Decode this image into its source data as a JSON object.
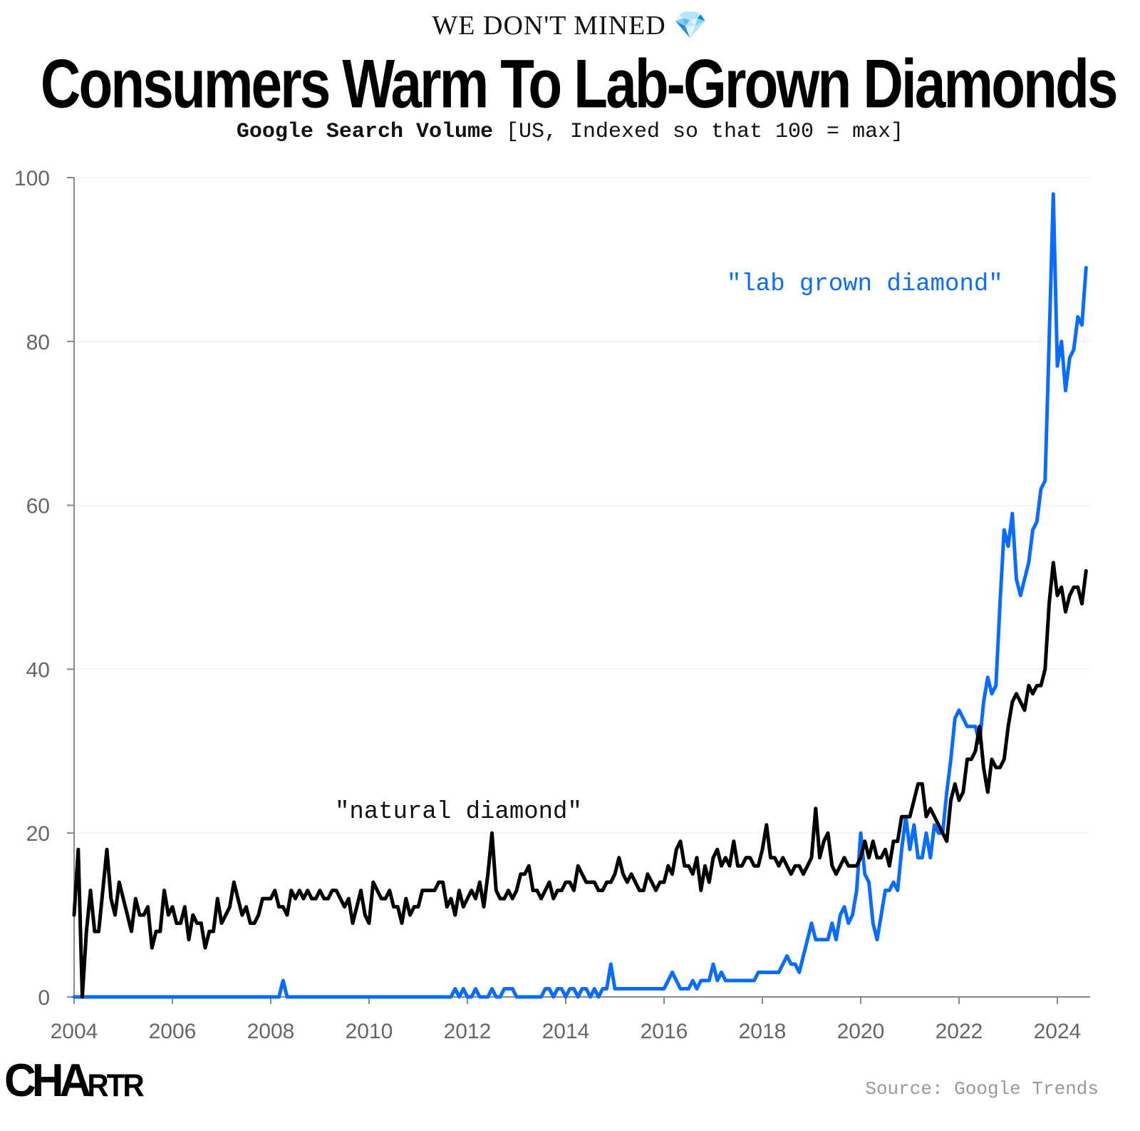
{
  "kicker": "WE DON'T MINED 💎",
  "title": "Consumers Warm To Lab-Grown Diamonds",
  "subtitle_bold": "Google Search Volume",
  "subtitle_rest": "[US, Indexed so that 100 = max]",
  "source": "Source: Google Trends",
  "logo": "CHARTR",
  "chart_data": {
    "type": "line",
    "x_start": "2004-01",
    "x_frequency": "monthly",
    "x_ticks": [
      "2004",
      "2006",
      "2008",
      "2010",
      "2012",
      "2014",
      "2016",
      "2018",
      "2020",
      "2022",
      "2024"
    ],
    "y_ticks": [
      "0",
      "20",
      "40",
      "60",
      "80",
      "100"
    ],
    "ylim": [
      0,
      100
    ],
    "grid": "horizontal",
    "series": [
      {
        "name": "\"natural diamond\"",
        "color": "#000000",
        "values": [
          10,
          18,
          0,
          8,
          13,
          8,
          8,
          13,
          18,
          12,
          10,
          14,
          12,
          10,
          8,
          12,
          10,
          10,
          11,
          6,
          8,
          8,
          13,
          10,
          11,
          9,
          9,
          11,
          7,
          10,
          9,
          9,
          6,
          8,
          8,
          12,
          9,
          10,
          11,
          14,
          12,
          10,
          11,
          9,
          9,
          10,
          12,
          12,
          12,
          13,
          11,
          11,
          10,
          13,
          12,
          13,
          12,
          13,
          12,
          12,
          13,
          12,
          12,
          13,
          13,
          12,
          11,
          12,
          9,
          11,
          13,
          10,
          9,
          14,
          13,
          12,
          12,
          13,
          11,
          11,
          9,
          12,
          10,
          11,
          11,
          13,
          13,
          13,
          13,
          14,
          14,
          11,
          12,
          10,
          13,
          11,
          12,
          13,
          12,
          14,
          11,
          15,
          20,
          13,
          12,
          12,
          13,
          12,
          13,
          15,
          15,
          16,
          13,
          13,
          12,
          13,
          14,
          12,
          13,
          13,
          14,
          14,
          13,
          16,
          15,
          14,
          14,
          14,
          13,
          13,
          14,
          14,
          15,
          17,
          15,
          14,
          15,
          14,
          13,
          13,
          15,
          14,
          13,
          14,
          14,
          16,
          15,
          18,
          19,
          16,
          16,
          15,
          17,
          13,
          16,
          14,
          17,
          18,
          16,
          17,
          16,
          19,
          16,
          16,
          17,
          17,
          16,
          16,
          18,
          21,
          17,
          17,
          16,
          17,
          16,
          15,
          16,
          16,
          15,
          16,
          17,
          23,
          17,
          19,
          20,
          16,
          15,
          16,
          17,
          16,
          16,
          16,
          17,
          19,
          17,
          19,
          17,
          17,
          18,
          16,
          19,
          19,
          22,
          22,
          22,
          24,
          26,
          26,
          22,
          23,
          22,
          21,
          20,
          19,
          24,
          26,
          24,
          25,
          29,
          29,
          30,
          33,
          28,
          25,
          29,
          28,
          28,
          29,
          33,
          36,
          37,
          36,
          35,
          38,
          37,
          38,
          38,
          40,
          48,
          53,
          49,
          50,
          47,
          49,
          50,
          50,
          48,
          52
        ]
      },
      {
        "name": "\"lab grown diamond\"",
        "color": "#0A6CFF",
        "values": [
          0,
          0,
          0,
          0,
          0,
          0,
          0,
          0,
          0,
          0,
          0,
          0,
          0,
          0,
          0,
          0,
          0,
          0,
          0,
          0,
          0,
          0,
          0,
          0,
          0,
          0,
          0,
          0,
          0,
          0,
          0,
          0,
          0,
          0,
          0,
          0,
          0,
          0,
          0,
          0,
          0,
          0,
          0,
          0,
          0,
          0,
          0,
          0,
          0,
          0,
          0,
          2,
          0,
          0,
          0,
          0,
          0,
          0,
          0,
          0,
          0,
          0,
          0,
          0,
          0,
          0,
          0,
          0,
          0,
          0,
          0,
          0,
          0,
          0,
          0,
          0,
          0,
          0,
          0,
          0,
          0,
          0,
          0,
          0,
          0,
          0,
          0,
          0,
          0,
          0,
          0,
          0,
          0,
          1,
          0,
          1,
          0,
          0,
          1,
          0,
          0,
          0,
          1,
          0,
          0,
          1,
          1,
          1,
          0,
          0,
          0,
          0,
          0,
          0,
          0,
          1,
          1,
          0,
          1,
          1,
          0,
          1,
          1,
          0,
          1,
          1,
          0,
          1,
          0,
          1,
          1,
          4,
          1,
          1,
          1,
          1,
          1,
          1,
          1,
          1,
          1,
          1,
          1,
          1,
          1,
          2,
          3,
          2,
          1,
          1,
          1,
          2,
          1,
          2,
          2,
          2,
          4,
          2,
          3,
          2,
          2,
          2,
          2,
          2,
          2,
          2,
          2,
          3,
          3,
          3,
          3,
          3,
          3,
          4,
          5,
          4,
          4,
          3,
          5,
          7,
          9,
          7,
          7,
          7,
          7,
          9,
          7,
          10,
          11,
          9,
          10,
          13,
          20,
          15,
          14,
          9,
          7,
          10,
          13,
          13,
          14,
          13,
          18,
          22,
          18,
          21,
          17,
          17,
          20,
          17,
          21,
          20,
          20,
          25,
          29,
          34,
          35,
          34,
          33,
          33,
          33,
          31,
          36,
          39,
          37,
          38,
          48,
          57,
          55,
          59,
          51,
          49,
          51,
          53,
          57,
          58,
          62,
          63,
          80,
          98,
          77,
          80,
          74,
          78,
          79,
          83,
          82,
          89
        ]
      }
    ]
  }
}
